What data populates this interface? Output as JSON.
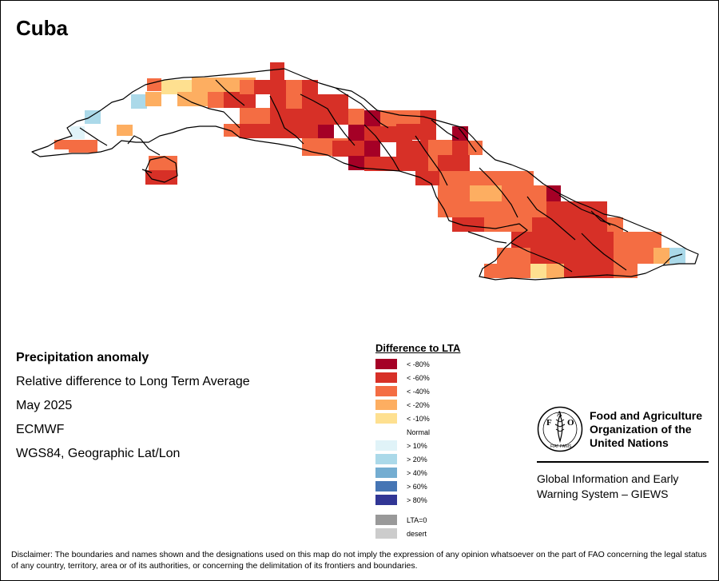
{
  "title": "Cuba",
  "info": {
    "heading": "Precipitation anomaly",
    "subtitle": "Relative difference to Long Term Average",
    "period": "May 2025",
    "model": "ECMWF",
    "projection": "WGS84, Geographic Lat/Lon"
  },
  "legend": {
    "title": "Difference to LTA",
    "classes": [
      {
        "label": "< -80%",
        "color": "#a50026"
      },
      {
        "label": "< -60%",
        "color": "#d73027"
      },
      {
        "label": "< -40%",
        "color": "#f46d43"
      },
      {
        "label": "< -20%",
        "color": "#fdae61"
      },
      {
        "label": "< -10%",
        "color": "#fee090"
      },
      {
        "label": "Normal",
        "color": "#ffffff"
      },
      {
        "label": "> 10%",
        "color": "#e0f3f8"
      },
      {
        "label": "> 20%",
        "color": "#abd9e9"
      },
      {
        "label": "> 40%",
        "color": "#74add1"
      },
      {
        "label": "> 60%",
        "color": "#4575b4"
      },
      {
        "label": "> 80%",
        "color": "#313695"
      }
    ],
    "extra": [
      {
        "label": "LTA=0",
        "color": "#999999"
      },
      {
        "label": "desert",
        "color": "#cccccc"
      }
    ]
  },
  "organization": {
    "name_line1": "Food and Agriculture",
    "name_line2": "Organization of the",
    "name_line3": "United Nations",
    "logo_letters": [
      "F",
      "A",
      "O"
    ],
    "logo_motto": "FIAT PANIS",
    "system_line1": "Global Information and Early",
    "system_line2": "Warning System – GIEWS"
  },
  "disclaimer": "Disclaimer: The boundaries and names shown and the designations used on this map do not imply the expression of any opinion whatsoever on the part of FAO concerning the legal status of any country, territory, area or of its authorities, or concerning the delimitation of its frontiers and boundaries."
}
